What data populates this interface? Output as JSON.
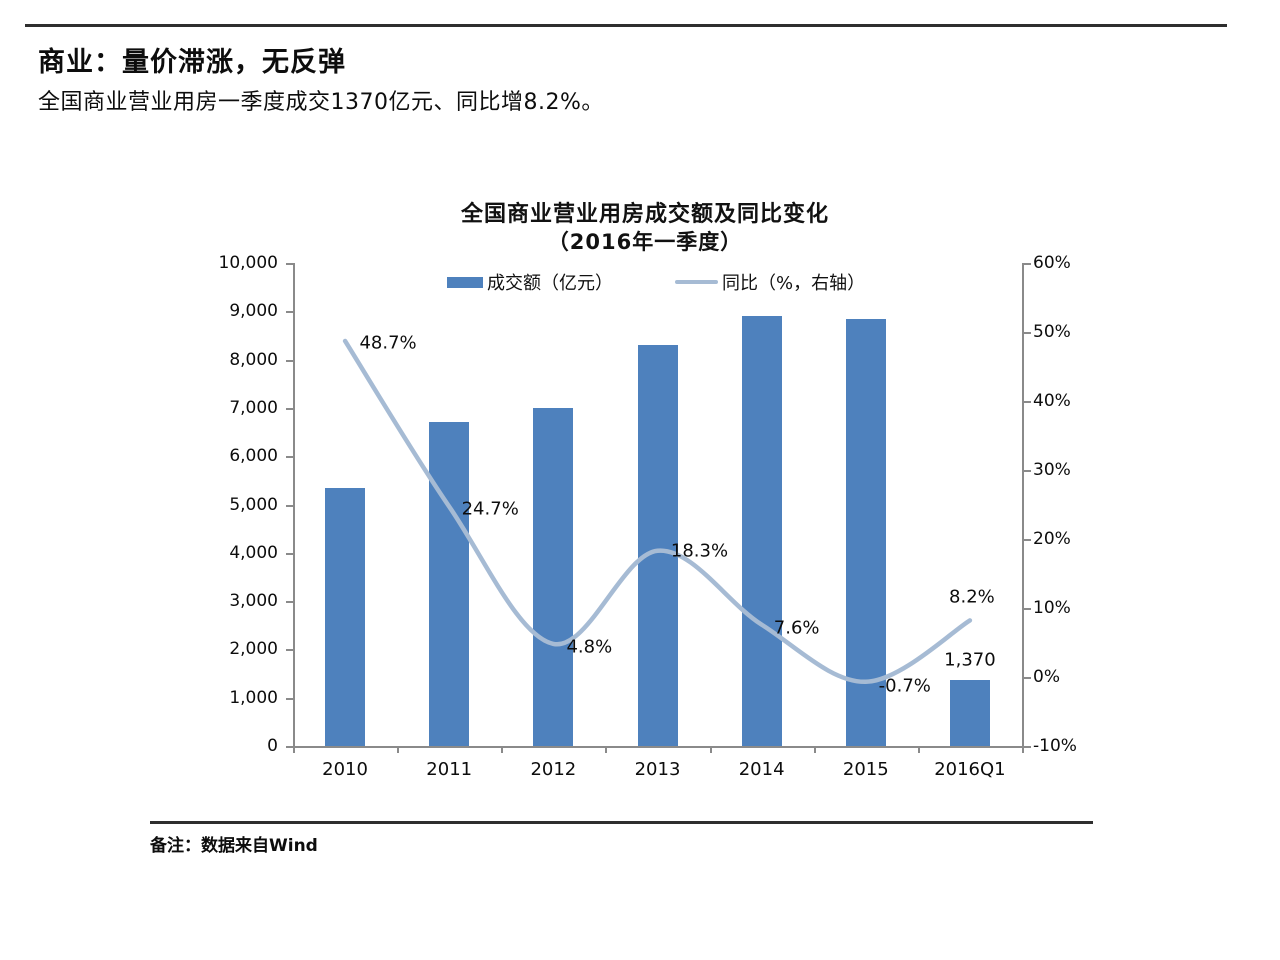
{
  "page": {
    "title": "商业：量价滞涨，无反弹",
    "subtitle": "全国商业营业用房一季度成交1370亿元、同比增8.2%。",
    "footnote": "备注：数据来自Wind"
  },
  "chart_data": {
    "type": "combo",
    "title": "全国商业营业用房成交额及同比变化",
    "subtitle": "（2016年一季度）",
    "categories": [
      "2010",
      "2011",
      "2012",
      "2013",
      "2014",
      "2015",
      "2016Q1"
    ],
    "series": [
      {
        "name": "成交额（亿元）",
        "type": "bar",
        "axis": "left",
        "color": "#4e81bd",
        "values": [
          5350,
          6700,
          7000,
          8300,
          8900,
          8850,
          1370
        ]
      },
      {
        "name": "同比（%，右轴）",
        "type": "line",
        "axis": "right",
        "color": "#a6bbd4",
        "values": [
          48.7,
          24.7,
          4.8,
          18.3,
          7.6,
          -0.7,
          8.2
        ]
      }
    ],
    "line_point_labels": [
      "48.7%",
      "24.7%",
      "4.8%",
      "18.3%",
      "7.6%",
      "-0.7%",
      "8.2%"
    ],
    "bar_point_labels": [
      "",
      "",
      "",
      "",
      "",
      "",
      "1,370"
    ],
    "left_axis": {
      "min": 0,
      "max": 10000,
      "step": 1000,
      "tick_labels": [
        "0",
        "1,000",
        "2,000",
        "3,000",
        "4,000",
        "5,000",
        "6,000",
        "7,000",
        "8,000",
        "9,000",
        "10,000"
      ]
    },
    "right_axis": {
      "min": -10,
      "max": 60,
      "step": 10,
      "tick_labels": [
        "-10%",
        "0%",
        "10%",
        "20%",
        "30%",
        "40%",
        "50%",
        "60%"
      ]
    },
    "legend_position": "top",
    "grid": false
  }
}
